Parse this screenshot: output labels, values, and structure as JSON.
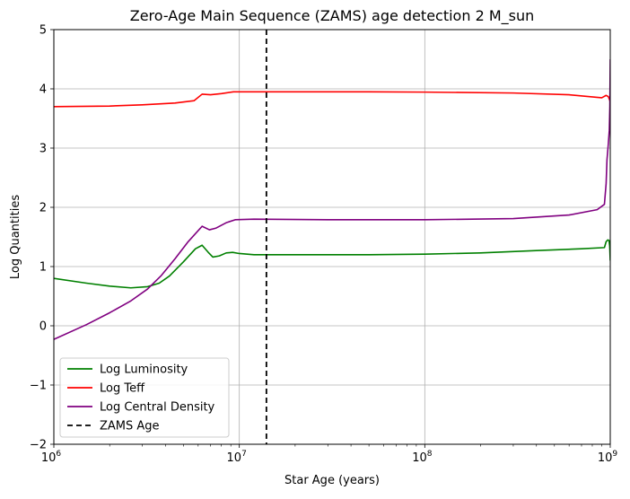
{
  "chart_data": {
    "type": "line",
    "title": "Zero-Age Main Sequence (ZAMS) age detection 2 M_sun",
    "xlabel": "Star Age (years)",
    "ylabel": "Log Quantities",
    "xscale": "log",
    "xlim": [
      1000000,
      1000000000
    ],
    "ylim": [
      -2,
      5
    ],
    "x_ticks": [
      {
        "value": 1000000,
        "base": "10",
        "exp": "6"
      },
      {
        "value": 10000000,
        "base": "10",
        "exp": "7"
      },
      {
        "value": 100000000,
        "base": "10",
        "exp": "8"
      },
      {
        "value": 1000000000,
        "base": "10",
        "exp": "9"
      }
    ],
    "y_ticks": [
      {
        "value": -2,
        "label": "−2"
      },
      {
        "value": -1,
        "label": "−1"
      },
      {
        "value": 0,
        "label": "0"
      },
      {
        "value": 1,
        "label": "1"
      },
      {
        "value": 2,
        "label": "2"
      },
      {
        "value": 3,
        "label": "3"
      },
      {
        "value": 4,
        "label": "4"
      },
      {
        "value": 5,
        "label": "5"
      }
    ],
    "grid": true,
    "legend_position": "lower-left",
    "series": [
      {
        "name": "Log Luminosity",
        "color": "#008000",
        "dash": "solid",
        "points": [
          [
            1000000,
            0.8
          ],
          [
            1500000,
            0.72
          ],
          [
            2000000,
            0.67
          ],
          [
            2600000,
            0.64
          ],
          [
            3200000,
            0.66
          ],
          [
            3700000,
            0.72
          ],
          [
            4200000,
            0.84
          ],
          [
            5000000,
            1.08
          ],
          [
            5800000,
            1.3
          ],
          [
            6300000,
            1.36
          ],
          [
            6800000,
            1.24
          ],
          [
            7200000,
            1.16
          ],
          [
            7800000,
            1.18
          ],
          [
            8500000,
            1.23
          ],
          [
            9200000,
            1.24
          ],
          [
            10000000,
            1.22
          ],
          [
            12000000,
            1.2
          ],
          [
            20000000,
            1.2
          ],
          [
            50000000,
            1.2
          ],
          [
            100000000,
            1.21
          ],
          [
            200000000,
            1.23
          ],
          [
            400000000,
            1.27
          ],
          [
            700000000,
            1.3
          ],
          [
            930000000,
            1.32
          ],
          [
            950000000,
            1.42
          ],
          [
            970000000,
            1.45
          ],
          [
            985000000,
            1.44
          ],
          [
            993000000,
            1.35
          ],
          [
            1000000000,
            1.1
          ]
        ]
      },
      {
        "name": "Log Teff",
        "color": "#ff0000",
        "dash": "solid",
        "points": [
          [
            1000000,
            3.7
          ],
          [
            2000000,
            3.71
          ],
          [
            3000000,
            3.73
          ],
          [
            4500000,
            3.76
          ],
          [
            5700000,
            3.8
          ],
          [
            6300000,
            3.91
          ],
          [
            7000000,
            3.9
          ],
          [
            8000000,
            3.92
          ],
          [
            9300000,
            3.95
          ],
          [
            15000000,
            3.95
          ],
          [
            50000000,
            3.95
          ],
          [
            100000000,
            3.945
          ],
          [
            300000000,
            3.93
          ],
          [
            600000000,
            3.9
          ],
          [
            900000000,
            3.85
          ],
          [
            950000000,
            3.89
          ],
          [
            975000000,
            3.87
          ],
          [
            990000000,
            3.82
          ],
          [
            1000000000,
            3.78
          ]
        ]
      },
      {
        "name": "Log Central Density",
        "color": "#800080",
        "dash": "solid",
        "points": [
          [
            1000000,
            -0.23
          ],
          [
            1500000,
            0.02
          ],
          [
            2000000,
            0.22
          ],
          [
            2600000,
            0.42
          ],
          [
            3200000,
            0.62
          ],
          [
            3800000,
            0.85
          ],
          [
            4500000,
            1.13
          ],
          [
            5300000,
            1.42
          ],
          [
            6300000,
            1.68
          ],
          [
            6900000,
            1.62
          ],
          [
            7500000,
            1.65
          ],
          [
            8500000,
            1.74
          ],
          [
            9500000,
            1.79
          ],
          [
            12000000,
            1.8
          ],
          [
            30000000,
            1.79
          ],
          [
            100000000,
            1.79
          ],
          [
            300000000,
            1.81
          ],
          [
            600000000,
            1.87
          ],
          [
            850000000,
            1.96
          ],
          [
            930000000,
            2.05
          ],
          [
            950000000,
            2.4
          ],
          [
            960000000,
            2.8
          ],
          [
            975000000,
            3.05
          ],
          [
            988000000,
            3.3
          ],
          [
            995000000,
            3.7
          ],
          [
            1000000000,
            4.5
          ]
        ]
      },
      {
        "name": "ZAMS Age",
        "color": "#000000",
        "dash": "dashed",
        "vertical_x": 14000000
      }
    ]
  }
}
